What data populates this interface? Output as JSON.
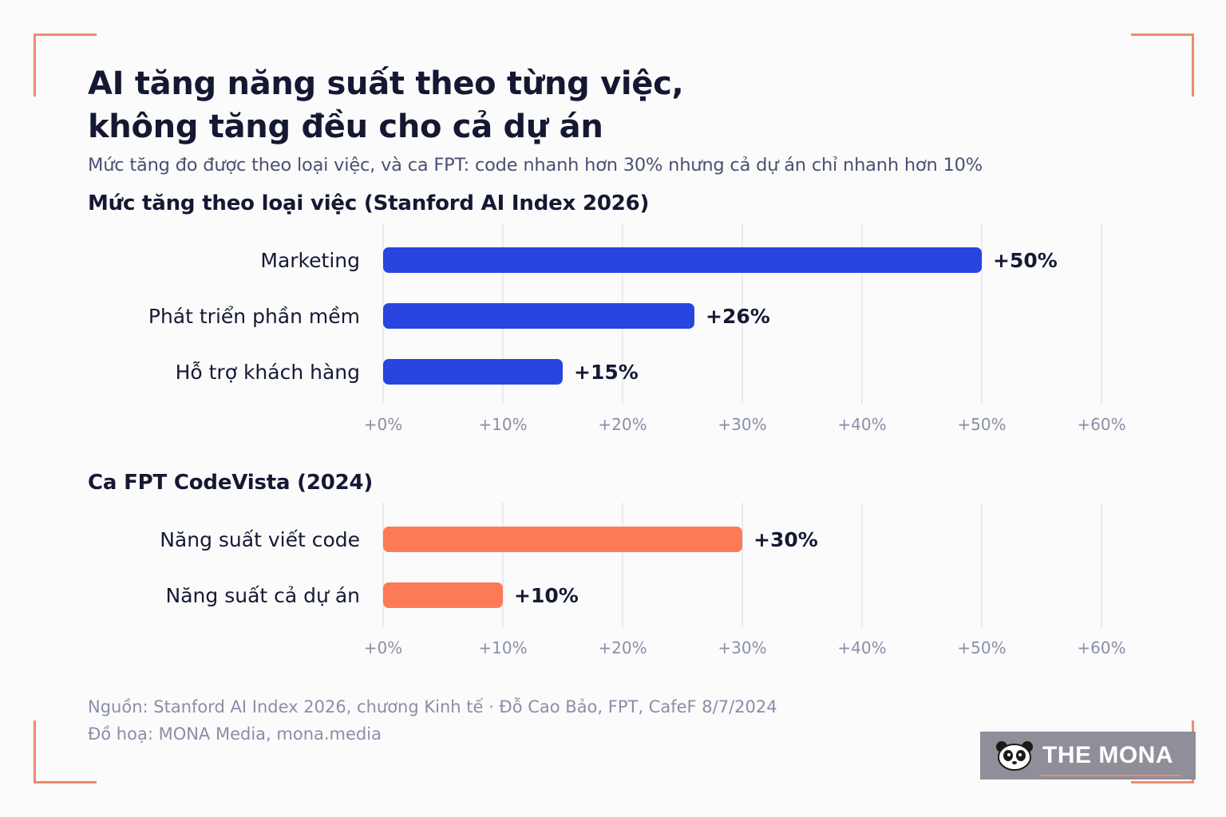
{
  "header": {
    "title_line1": "AI tăng năng suất theo từng việc,",
    "title_line2": "không tăng đều cho cả dự án",
    "subtitle": "Mức tăng đo được theo loại việc, và ca FPT: code nhanh hơn 30% nhưng cả dự án chỉ nhanh hơn 10%"
  },
  "colors": {
    "blue": "#2a44e0",
    "orange": "#fc7b56",
    "grid": "#e4e5ea",
    "tick": "#8a8fa6",
    "accent": "#ef8a6b"
  },
  "chart_data": [
    {
      "type": "bar",
      "orientation": "horizontal",
      "title": "Mức tăng theo loại việc (Stanford AI Index 2026)",
      "categories": [
        "Marketing",
        "Phát triển phần mềm",
        "Hỗ trợ khách hàng"
      ],
      "values": [
        50,
        26,
        15
      ],
      "value_labels": [
        "+50%",
        "+26%",
        "+15%"
      ],
      "xlim": [
        0,
        60
      ],
      "xticks": [
        0,
        10,
        20,
        30,
        40,
        50,
        60
      ],
      "xtick_labels": [
        "+0%",
        "+10%",
        "+20%",
        "+30%",
        "+40%",
        "+50%",
        "+60%"
      ],
      "grid": true,
      "color": "#2a44e0"
    },
    {
      "type": "bar",
      "orientation": "horizontal",
      "title": "Ca FPT CodeVista (2024)",
      "categories": [
        "Năng suất viết code",
        "Năng suất cả dự án"
      ],
      "values": [
        30,
        10
      ],
      "value_labels": [
        "+30%",
        "+10%"
      ],
      "xlim": [
        0,
        60
      ],
      "xticks": [
        0,
        10,
        20,
        30,
        40,
        50,
        60
      ],
      "xtick_labels": [
        "+0%",
        "+10%",
        "+20%",
        "+30%",
        "+40%",
        "+50%",
        "+60%"
      ],
      "grid": true,
      "color": "#fc7b56"
    }
  ],
  "footer": {
    "source": "Nguồn: Stanford AI Index 2026, chương Kinh tế · Đỗ Cao Bảo, FPT, CafeF 8/7/2024",
    "credit": "Đồ hoạ: MONA Media, mona.media"
  },
  "logo": {
    "text": "THE MONA",
    "icon": "panda-icon"
  }
}
